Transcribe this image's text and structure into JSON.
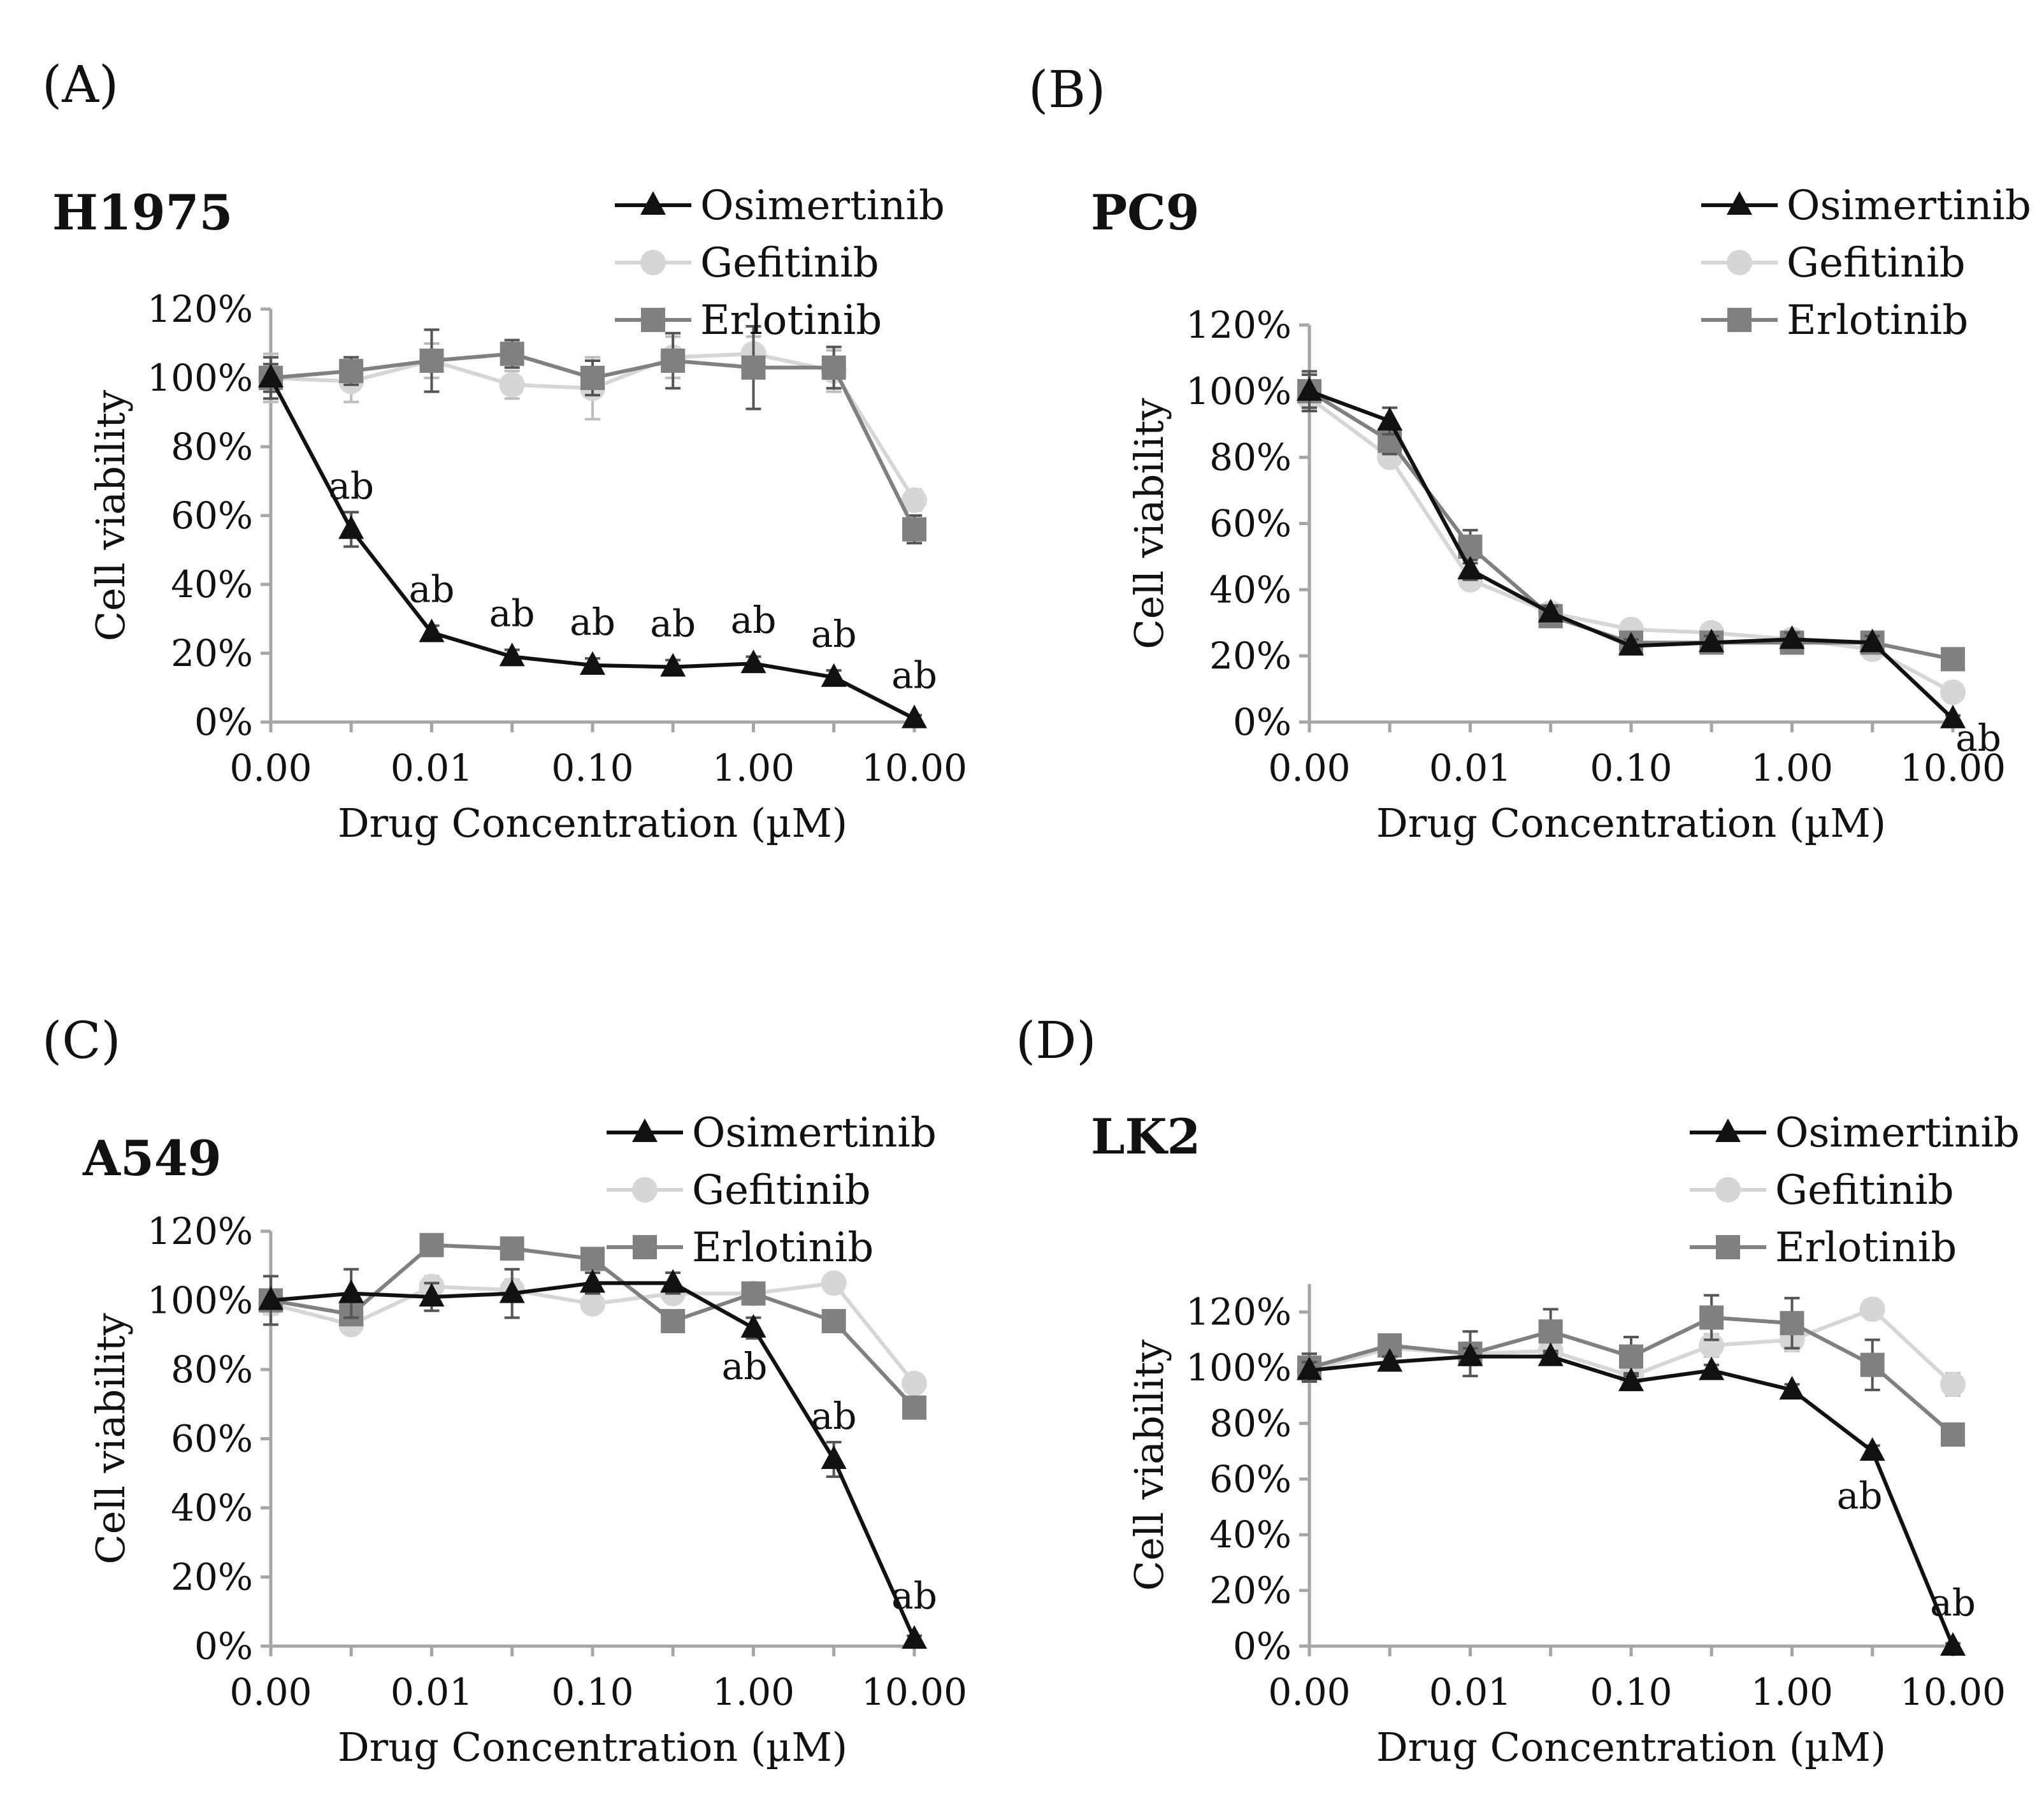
{
  "figure": {
    "panels": [
      {
        "id": "A",
        "label": "(A)",
        "cell_line": "H1975"
      },
      {
        "id": "B",
        "label": "(B)",
        "cell_line": "PC9"
      },
      {
        "id": "C",
        "label": "(C)",
        "cell_line": "A549"
      },
      {
        "id": "D",
        "label": "(D)",
        "cell_line": "LK2"
      }
    ]
  },
  "chart_data": [
    {
      "type": "line",
      "panel": "(A)",
      "title": "H1975",
      "xlabel": "Drug Concentration (µM)",
      "ylabel": "Cell viability",
      "x_scale": "log",
      "x": [
        0.001,
        0.00316,
        0.01,
        0.0316,
        0.1,
        0.316,
        1,
        3.16,
        10
      ],
      "x_ticks": [
        0.001,
        0.01,
        0.1,
        1,
        10
      ],
      "x_tick_labels": [
        "0.00",
        "0.01",
        "0.10",
        "1.00",
        "10.00"
      ],
      "ylim": [
        0,
        1.2
      ],
      "y_ticks": [
        0,
        0.2,
        0.4,
        0.6,
        0.8,
        1.0,
        1.2
      ],
      "y_tick_labels": [
        "0%",
        "20%",
        "40%",
        "60%",
        "80%",
        "100%",
        "120%"
      ],
      "legend": {
        "position": "top-right",
        "entries": [
          "Osimertinib",
          "Gefitinib",
          "Erlotinib"
        ]
      },
      "series": [
        {
          "name": "Osimertinib",
          "marker": "triangle",
          "color": "#111111",
          "values": [
            1.0,
            0.56,
            0.26,
            0.19,
            0.165,
            0.16,
            0.17,
            0.13,
            0.01
          ],
          "errors": [
            0.04,
            0.05,
            0.02,
            0.02,
            0.02,
            0.02,
            0.02,
            0.02,
            0.01
          ]
        },
        {
          "name": "Gefitinib",
          "marker": "circle",
          "color": "#d6d6d6",
          "values": [
            1.0,
            0.99,
            1.05,
            0.98,
            0.97,
            1.06,
            1.07,
            1.02,
            0.645
          ],
          "errors": [
            0.07,
            0.06,
            0.05,
            0.04,
            0.09,
            0.06,
            0.05,
            0.06,
            0.03
          ]
        },
        {
          "name": "Erlotinib",
          "marker": "square",
          "color": "#808080",
          "values": [
            1.0,
            1.02,
            1.05,
            1.07,
            1.0,
            1.05,
            1.03,
            1.03,
            0.56
          ],
          "errors": [
            0.06,
            0.04,
            0.09,
            0.04,
            0.05,
            0.08,
            0.12,
            0.06,
            0.04
          ]
        }
      ],
      "annotations": [
        {
          "text": "ab",
          "x": 0.00316,
          "y": 0.56
        },
        {
          "text": "ab",
          "x": 0.01,
          "y": 0.26
        },
        {
          "text": "ab",
          "x": 0.0316,
          "y": 0.19
        },
        {
          "text": "ab",
          "x": 0.1,
          "y": 0.165
        },
        {
          "text": "ab",
          "x": 0.316,
          "y": 0.16
        },
        {
          "text": "ab",
          "x": 1,
          "y": 0.17
        },
        {
          "text": "ab",
          "x": 3.16,
          "y": 0.13
        },
        {
          "text": "ab",
          "x": 10,
          "y": 0.01
        }
      ]
    },
    {
      "type": "line",
      "panel": "(B)",
      "title": "PC9",
      "xlabel": "Drug Concentration (µM)",
      "ylabel": "Cell viability",
      "x_scale": "log",
      "x": [
        0.001,
        0.00316,
        0.01,
        0.0316,
        0.1,
        0.316,
        1,
        3.16,
        10
      ],
      "x_ticks": [
        0.001,
        0.01,
        0.1,
        1,
        10
      ],
      "x_tick_labels": [
        "0.00",
        "0.01",
        "0.10",
        "1.00",
        "10.00"
      ],
      "ylim": [
        0,
        1.2
      ],
      "y_ticks": [
        0,
        0.2,
        0.4,
        0.6,
        0.8,
        1.0,
        1.2
      ],
      "y_tick_labels": [
        "0%",
        "20%",
        "40%",
        "60%",
        "80%",
        "100%",
        "120%"
      ],
      "legend": {
        "position": "top-right",
        "entries": [
          "Osimertinib",
          "Gefitinib",
          "Erlotinib"
        ]
      },
      "series": [
        {
          "name": "Osimertinib",
          "marker": "triangle",
          "color": "#111111",
          "values": [
            1.0,
            0.91,
            0.46,
            0.33,
            0.23,
            0.24,
            0.25,
            0.24,
            0.01
          ],
          "errors": [
            0.06,
            0.04,
            0.03,
            0.02,
            0.02,
            0.02,
            0.02,
            0.02,
            0.01
          ]
        },
        {
          "name": "Gefitinib",
          "marker": "circle",
          "color": "#d6d6d6",
          "values": [
            0.98,
            0.8,
            0.43,
            0.33,
            0.28,
            0.27,
            0.25,
            0.22,
            0.09
          ],
          "errors": [
            0.04,
            0.02,
            0.02,
            0.01,
            0.02,
            0.02,
            0.02,
            0.01,
            0.01
          ]
        },
        {
          "name": "Erlotinib",
          "marker": "square",
          "color": "#808080",
          "values": [
            1.0,
            0.85,
            0.53,
            0.32,
            0.24,
            0.24,
            0.24,
            0.24,
            0.19
          ],
          "errors": [
            0.05,
            0.04,
            0.05,
            0.02,
            0.02,
            0.02,
            0.02,
            0.01,
            0.01
          ]
        }
      ],
      "annotations": [
        {
          "text": "ab",
          "x": 10,
          "y": 0.01
        }
      ]
    },
    {
      "type": "line",
      "panel": "(C)",
      "title": "A549",
      "xlabel": "Drug Concentration (µM)",
      "ylabel": "Cell viability",
      "x_scale": "log",
      "x": [
        0.001,
        0.00316,
        0.01,
        0.0316,
        0.1,
        0.316,
        1,
        3.16,
        10
      ],
      "x_ticks": [
        0.001,
        0.01,
        0.1,
        1,
        10
      ],
      "x_tick_labels": [
        "0.00",
        "0.01",
        "0.10",
        "1.00",
        "10.00"
      ],
      "ylim": [
        0,
        1.2
      ],
      "y_ticks": [
        0,
        0.2,
        0.4,
        0.6,
        0.8,
        1.0,
        1.2
      ],
      "y_tick_labels": [
        "0%",
        "20%",
        "40%",
        "60%",
        "80%",
        "100%",
        "120%"
      ],
      "legend": {
        "position": "top-right",
        "entries": [
          "Osimertinib",
          "Gefitinib",
          "Erlotinib"
        ]
      },
      "series": [
        {
          "name": "Osimertinib",
          "marker": "triangle",
          "color": "#111111",
          "values": [
            1.0,
            1.02,
            1.01,
            1.02,
            1.05,
            1.05,
            0.92,
            0.54,
            0.02
          ],
          "errors": [
            0.07,
            0.07,
            0.04,
            0.07,
            0.03,
            0.03,
            0.03,
            0.05,
            0.01
          ]
        },
        {
          "name": "Gefitinib",
          "marker": "circle",
          "color": "#d6d6d6",
          "values": [
            0.99,
            0.93,
            1.04,
            1.03,
            0.99,
            1.02,
            1.02,
            1.05,
            0.76
          ],
          "errors": [
            0.03,
            0.02,
            0.03,
            0.03,
            0.02,
            0.02,
            0.02,
            0.02,
            0.02
          ]
        },
        {
          "name": "Erlotinib",
          "marker": "square",
          "color": "#808080",
          "values": [
            1.0,
            0.96,
            1.16,
            1.15,
            1.12,
            0.94,
            1.02,
            0.94,
            0.69
          ],
          "errors": [
            0.03,
            0.03,
            0.03,
            0.03,
            0.03,
            0.03,
            0.03,
            0.02,
            0.02
          ]
        }
      ],
      "annotations": [
        {
          "text": "ab",
          "x": 1,
          "y": 0.92
        },
        {
          "text": "ab",
          "x": 3.16,
          "y": 0.54
        },
        {
          "text": "ab",
          "x": 10,
          "y": 0.02
        }
      ]
    },
    {
      "type": "line",
      "panel": "(D)",
      "title": "LK2",
      "xlabel": "Drug Concentration (µM)",
      "ylabel": "Cell viability",
      "x_scale": "log",
      "x": [
        0.001,
        0.00316,
        0.01,
        0.0316,
        0.1,
        0.316,
        1,
        3.16,
        10
      ],
      "x_ticks": [
        0.001,
        0.01,
        0.1,
        1,
        10
      ],
      "x_tick_labels": [
        "0.00",
        "0.01",
        "0.10",
        "1.00",
        "10.00"
      ],
      "ylim": [
        0,
        1.3
      ],
      "y_ticks": [
        0,
        0.2,
        0.4,
        0.6,
        0.8,
        1.0,
        1.2
      ],
      "y_tick_labels": [
        "0%",
        "20%",
        "40%",
        "60%",
        "80%",
        "100%",
        "120%"
      ],
      "legend": {
        "position": "top-right",
        "entries": [
          "Osimertinib",
          "Gefitinib",
          "Erlotinib"
        ]
      },
      "series": [
        {
          "name": "Osimertinib",
          "marker": "triangle",
          "color": "#111111",
          "values": [
            0.99,
            1.02,
            1.04,
            1.04,
            0.95,
            0.99,
            0.92,
            0.7,
            0.0
          ],
          "errors": [
            0.03,
            0.02,
            0.03,
            0.02,
            0.03,
            0.02,
            0.02,
            0.02,
            0.01
          ]
        },
        {
          "name": "Gefitinib",
          "marker": "circle",
          "color": "#d6d6d6",
          "values": [
            0.99,
            1.07,
            1.05,
            1.06,
            0.97,
            1.08,
            1.1,
            1.21,
            0.94
          ],
          "errors": [
            0.04,
            0.03,
            0.04,
            0.04,
            0.04,
            0.04,
            0.04,
            0.03,
            0.04
          ]
        },
        {
          "name": "Erlotinib",
          "marker": "square",
          "color": "#808080",
          "values": [
            1.0,
            1.08,
            1.05,
            1.13,
            1.04,
            1.18,
            1.16,
            1.01,
            0.76
          ],
          "errors": [
            0.05,
            0.03,
            0.08,
            0.08,
            0.07,
            0.08,
            0.09,
            0.09,
            0.02
          ]
        }
      ],
      "annotations": [
        {
          "text": "ab",
          "x": 3.16,
          "y": 0.7
        },
        {
          "text": "ab",
          "x": 10,
          "y": 0.0
        }
      ]
    }
  ]
}
